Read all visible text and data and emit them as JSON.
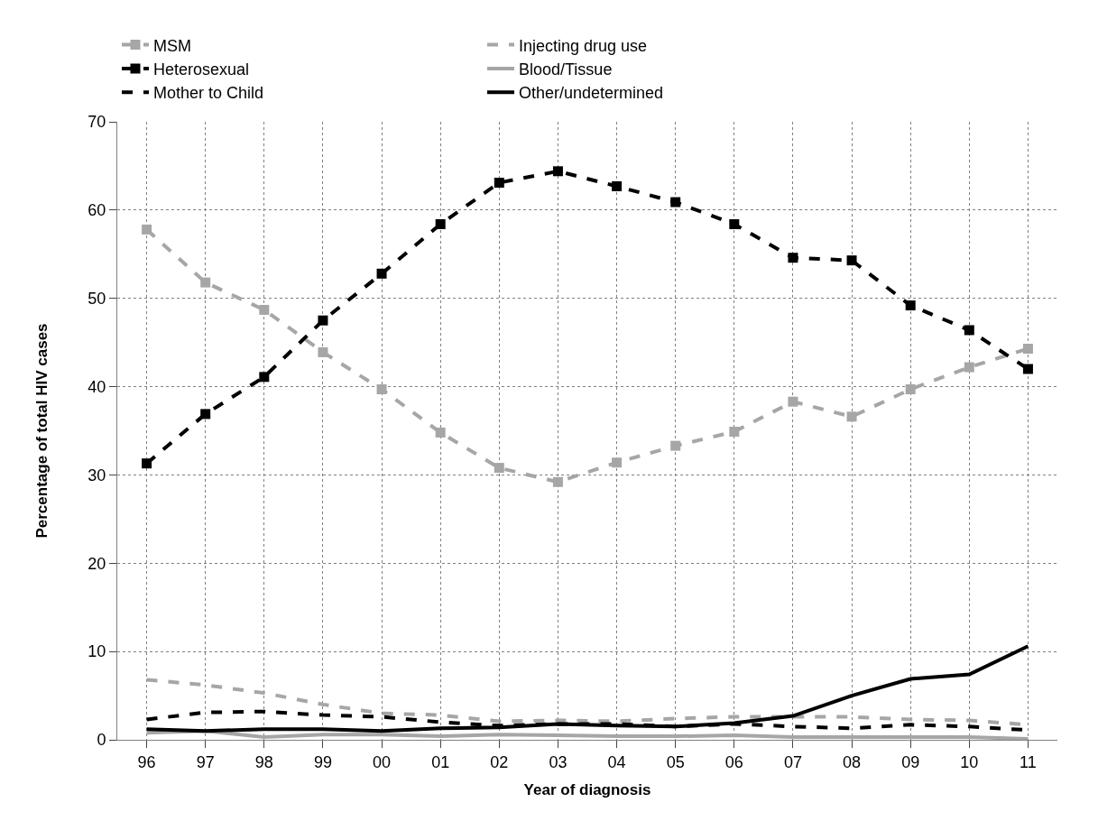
{
  "chart_data": {
    "type": "line",
    "xlabel": "Year of diagnosis",
    "ylabel": "Percentage of total HIV cases",
    "categories": [
      "96",
      "97",
      "98",
      "99",
      "00",
      "01",
      "02",
      "03",
      "04",
      "05",
      "06",
      "07",
      "08",
      "09",
      "10",
      "11"
    ],
    "ylim": [
      0,
      70
    ],
    "yticks": [
      0,
      10,
      20,
      30,
      40,
      50,
      60,
      70
    ],
    "grid": true,
    "legend": "top",
    "series": [
      {
        "name": "MSM",
        "color": "#a6a6a6",
        "marker": "square",
        "line_style": "dashed",
        "values": [
          57.8,
          51.8,
          48.7,
          43.9,
          39.7,
          34.8,
          30.8,
          29.2,
          31.4,
          33.3,
          34.9,
          38.3,
          36.6,
          39.7,
          42.2,
          44.3
        ]
      },
      {
        "name": "Injecting drug use",
        "color": "#a6a6a6",
        "marker": "none",
        "line_style": "dashed",
        "values": [
          6.8,
          6.2,
          5.3,
          4.0,
          3.0,
          2.8,
          2.1,
          2.2,
          2.1,
          2.4,
          2.6,
          2.6,
          2.6,
          2.3,
          2.2,
          1.7
        ]
      },
      {
        "name": "Heterosexual",
        "color": "#000000",
        "marker": "square",
        "line_style": "dashed",
        "values": [
          31.3,
          36.9,
          41.1,
          47.5,
          52.8,
          58.4,
          63.1,
          64.4,
          62.7,
          60.9,
          58.4,
          54.6,
          54.3,
          49.2,
          46.4,
          42.0
        ]
      },
      {
        "name": "Blood/Tissue",
        "color": "#a6a6a6",
        "marker": "none",
        "line_style": "solid",
        "values": [
          0.8,
          1.0,
          0.3,
          0.6,
          0.6,
          0.4,
          0.6,
          0.5,
          0.4,
          0.4,
          0.5,
          0.3,
          0.3,
          0.3,
          0.3,
          0.1
        ]
      },
      {
        "name": "Mother to Child",
        "color": "#000000",
        "marker": "none",
        "line_style": "dashed",
        "values": [
          2.3,
          3.1,
          3.2,
          2.8,
          2.6,
          2.0,
          1.6,
          1.8,
          1.8,
          1.5,
          1.8,
          1.5,
          1.3,
          1.7,
          1.5,
          1.1
        ]
      },
      {
        "name": "Other/undetermined",
        "color": "#000000",
        "marker": "none",
        "line_style": "solid",
        "values": [
          1.2,
          1.0,
          1.2,
          1.2,
          1.0,
          1.3,
          1.4,
          1.8,
          1.6,
          1.5,
          1.9,
          2.7,
          5.0,
          6.9,
          7.4,
          10.6
        ]
      }
    ]
  }
}
